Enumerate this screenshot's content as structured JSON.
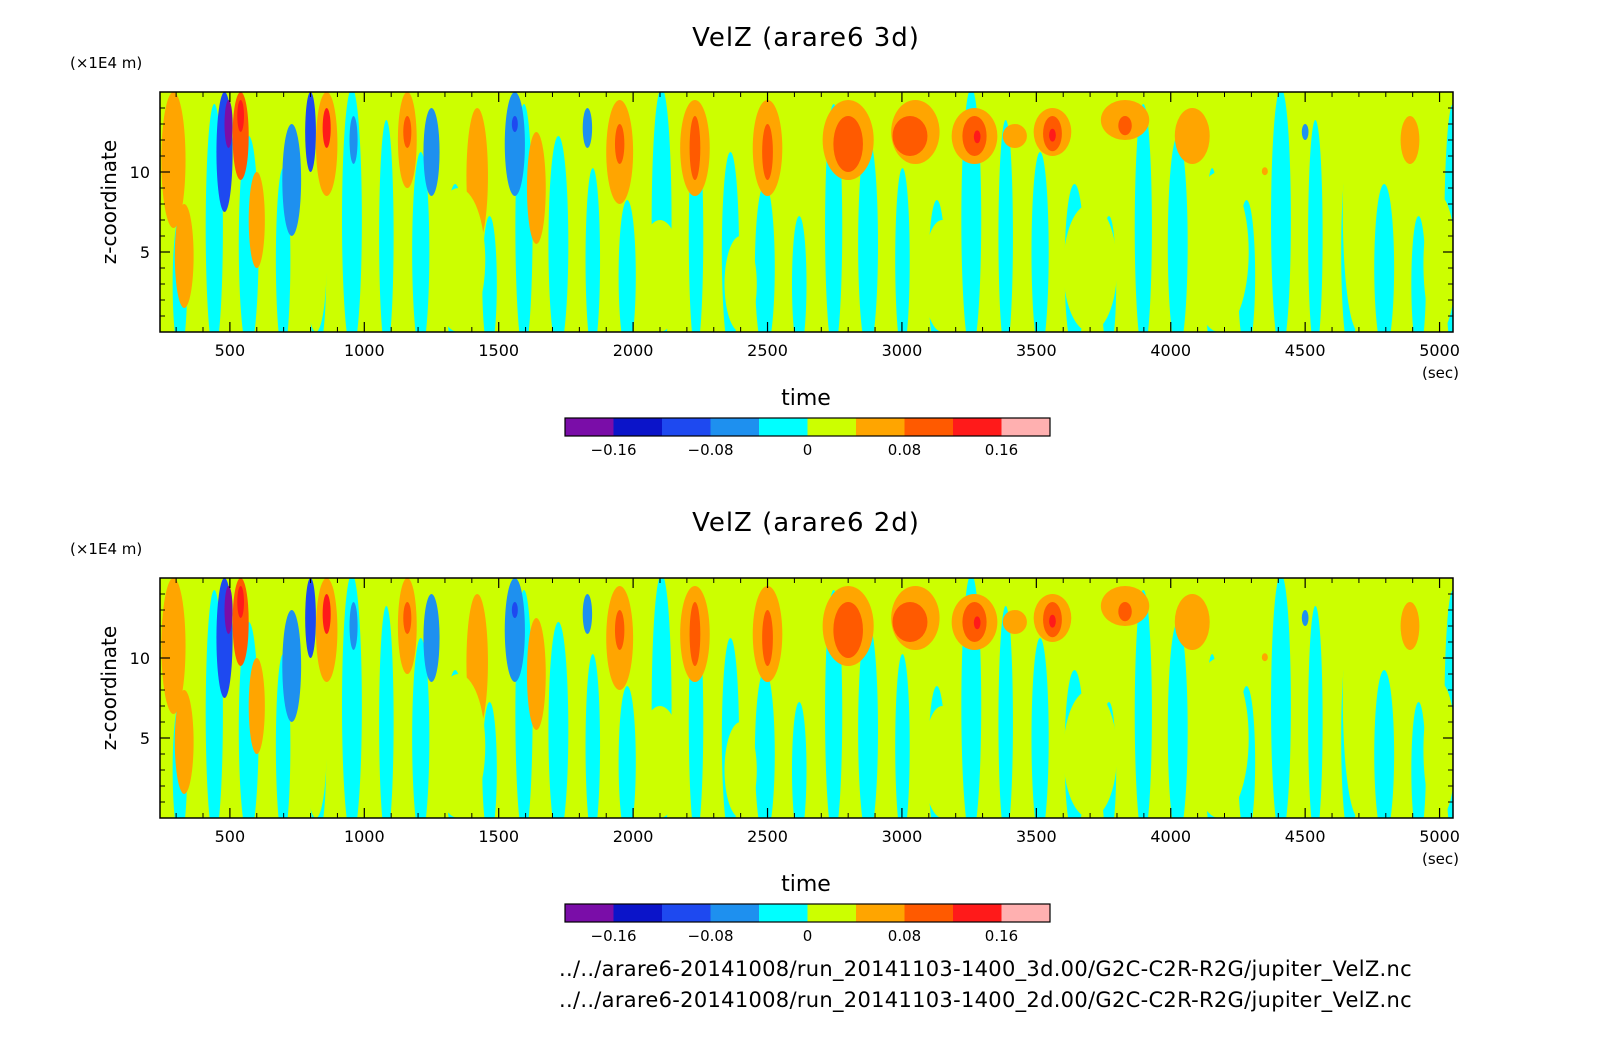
{
  "colorbar": {
    "colors": [
      "#7a0da8",
      "#0b14c9",
      "#1e49f0",
      "#1e90ef",
      "#00ffff",
      "#ccff00",
      "#ffa500",
      "#ff5a00",
      "#ff1a1a",
      "#ffb0b0"
    ],
    "tick_values": [
      -0.16,
      -0.08,
      0,
      0.08,
      0.16
    ],
    "tick_labels": [
      "−0.16",
      "−0.08",
      "0",
      "0.08",
      "0.16"
    ]
  },
  "chart_data": [
    {
      "type": "heatmap",
      "title": "VelZ (arare6 3d)",
      "xlabel": "time",
      "x_unit": "(sec)",
      "ylabel": "z-coordinate",
      "y_unit": "(×1E4 m)",
      "xlim": [
        240,
        5050
      ],
      "ylim": [
        0,
        15
      ],
      "x_ticks": [
        500,
        1000,
        1500,
        2000,
        2500,
        3000,
        3500,
        4000,
        4500,
        5000
      ],
      "y_ticks": [
        5,
        10
      ],
      "value_levels": [
        -0.2,
        -0.16,
        -0.12,
        -0.08,
        -0.04,
        0,
        0.04,
        0.08,
        0.12,
        0.16,
        0.2
      ],
      "features": [
        {
          "t": 290,
          "z_bottom": 6.5,
          "z_top": 15,
          "width": 90,
          "value": 0.06
        },
        {
          "t": 330,
          "z_bottom": 1.5,
          "z_top": 8,
          "width": 70,
          "value": 0.06
        },
        {
          "t": 480,
          "z_bottom": 7.5,
          "z_top": 15,
          "width": 60,
          "value": -0.1
        },
        {
          "t": 495,
          "z_bottom": 11.5,
          "z_top": 14.5,
          "width": 30,
          "value": -0.17
        },
        {
          "t": 540,
          "z_bottom": 9.5,
          "z_top": 15,
          "width": 60,
          "value": 0.09
        },
        {
          "t": 540,
          "z_bottom": 12.5,
          "z_top": 14.5,
          "width": 25,
          "value": 0.13
        },
        {
          "t": 600,
          "z_bottom": 4,
          "z_top": 10,
          "width": 60,
          "value": 0.06
        },
        {
          "t": 730,
          "z_bottom": 6,
          "z_top": 13,
          "width": 70,
          "value": -0.07
        },
        {
          "t": 800,
          "z_bottom": 10,
          "z_top": 15,
          "width": 40,
          "value": -0.09
        },
        {
          "t": 860,
          "z_bottom": 8.5,
          "z_top": 15,
          "width": 80,
          "value": 0.07
        },
        {
          "t": 860,
          "z_bottom": 11.5,
          "z_top": 14,
          "width": 30,
          "value": 0.12
        },
        {
          "t": 960,
          "z_bottom": 10.5,
          "z_top": 13.5,
          "width": 30,
          "value": -0.06
        },
        {
          "t": 1160,
          "z_bottom": 9,
          "z_top": 15,
          "width": 70,
          "value": 0.06
        },
        {
          "t": 1160,
          "z_bottom": 11.5,
          "z_top": 13.5,
          "width": 30,
          "value": 0.1
        },
        {
          "t": 1250,
          "z_bottom": 8.5,
          "z_top": 14,
          "width": 60,
          "value": -0.06
        },
        {
          "t": 1420,
          "z_bottom": 5.5,
          "z_top": 14,
          "width": 80,
          "value": 0.06
        },
        {
          "t": 1560,
          "z_bottom": 8.5,
          "z_top": 15,
          "width": 75,
          "value": -0.06
        },
        {
          "t": 1560,
          "z_bottom": 12.5,
          "z_top": 13.5,
          "width": 10,
          "value": -0.09
        },
        {
          "t": 1640,
          "z_bottom": 5.5,
          "z_top": 12.5,
          "width": 70,
          "value": 0.06
        },
        {
          "t": 1830,
          "z_bottom": 11.5,
          "z_top": 14,
          "width": 35,
          "value": -0.05
        },
        {
          "t": 1950,
          "z_bottom": 8,
          "z_top": 14.5,
          "width": 100,
          "value": 0.06
        },
        {
          "t": 1950,
          "z_bottom": 10.5,
          "z_top": 13,
          "width": 35,
          "value": 0.1
        },
        {
          "t": 2230,
          "z_bottom": 8.5,
          "z_top": 14.5,
          "width": 110,
          "value": 0.06
        },
        {
          "t": 2230,
          "z_bottom": 9.5,
          "z_top": 13.5,
          "width": 40,
          "value": 0.1
        },
        {
          "t": 2500,
          "z_bottom": 8.5,
          "z_top": 14.5,
          "width": 110,
          "value": 0.06
        },
        {
          "t": 2500,
          "z_bottom": 9.5,
          "z_top": 13,
          "width": 40,
          "value": 0.1
        },
        {
          "t": 2800,
          "z_bottom": 9.5,
          "z_top": 14.5,
          "width": 190,
          "value": 0.06
        },
        {
          "t": 2800,
          "z_bottom": 10,
          "z_top": 13.5,
          "width": 110,
          "value": 0.1
        },
        {
          "t": 3050,
          "z_bottom": 10.5,
          "z_top": 14.5,
          "width": 180,
          "value": 0.06
        },
        {
          "t": 3030,
          "z_bottom": 11,
          "z_top": 13.5,
          "width": 130,
          "value": 0.1
        },
        {
          "t": 3270,
          "z_bottom": 10.5,
          "z_top": 14,
          "width": 170,
          "value": 0.06
        },
        {
          "t": 3270,
          "z_bottom": 11,
          "z_top": 13.5,
          "width": 90,
          "value": 0.1
        },
        {
          "t": 3280,
          "z_bottom": 11.8,
          "z_top": 12.6,
          "width": 25,
          "value": 0.14
        },
        {
          "t": 3420,
          "z_bottom": 11.5,
          "z_top": 13,
          "width": 90,
          "value": 0.06
        },
        {
          "t": 3560,
          "z_bottom": 11,
          "z_top": 14,
          "width": 140,
          "value": 0.06
        },
        {
          "t": 3560,
          "z_bottom": 11.3,
          "z_top": 13.5,
          "width": 70,
          "value": 0.1
        },
        {
          "t": 3560,
          "z_bottom": 11.9,
          "z_top": 12.7,
          "width": 25,
          "value": 0.14
        },
        {
          "t": 3830,
          "z_bottom": 12,
          "z_top": 14.5,
          "width": 180,
          "value": 0.06
        },
        {
          "t": 3830,
          "z_bottom": 12.3,
          "z_top": 13.5,
          "width": 50,
          "value": 0.1
        },
        {
          "t": 4080,
          "z_bottom": 10.5,
          "z_top": 14,
          "width": 130,
          "value": 0.06
        },
        {
          "t": 4350,
          "z_bottom": 9.8,
          "z_top": 10.3,
          "width": 15,
          "value": 0.06
        },
        {
          "t": 4500,
          "z_bottom": 12,
          "z_top": 13,
          "width": 25,
          "value": -0.05
        },
        {
          "t": 4890,
          "z_bottom": 10.5,
          "z_top": 13.5,
          "width": 70,
          "value": 0.06
        },
        {
          "t": 820,
          "z_bottom": 0,
          "z_top": 9,
          "width": 80,
          "value": 0.01
        },
        {
          "t": 1350,
          "z_bottom": 0,
          "z_top": 9,
          "width": 200,
          "value": 0.01
        },
        {
          "t": 2100,
          "z_bottom": 0,
          "z_top": 7,
          "width": 160,
          "value": 0.01
        },
        {
          "t": 2400,
          "z_bottom": 0,
          "z_top": 6,
          "width": 120,
          "value": 0.01
        },
        {
          "t": 3150,
          "z_bottom": 0,
          "z_top": 7,
          "width": 140,
          "value": 0.01
        },
        {
          "t": 3700,
          "z_bottom": 0,
          "z_top": 8,
          "width": 200,
          "value": 0.01
        },
        {
          "t": 4180,
          "z_bottom": 0,
          "z_top": 10,
          "width": 220,
          "value": 0.01
        },
        {
          "t": 4700,
          "z_bottom": 0,
          "z_top": 15,
          "width": 120,
          "value": 0.01
        },
        {
          "t": 5000,
          "z_bottom": 0,
          "z_top": 8.5,
          "width": 120,
          "value": 0.01
        }
      ]
    },
    {
      "type": "heatmap",
      "title": "VelZ (arare6 2d)",
      "xlabel": "time",
      "x_unit": "(sec)",
      "ylabel": "z-coordinate",
      "y_unit": "(×1E4 m)",
      "xlim": [
        240,
        5050
      ],
      "ylim": [
        0,
        15
      ],
      "x_ticks": [
        500,
        1000,
        1500,
        2000,
        2500,
        3000,
        3500,
        4000,
        4500,
        5000
      ],
      "y_ticks": [
        5,
        10
      ],
      "value_levels": [
        -0.2,
        -0.16,
        -0.12,
        -0.08,
        -0.04,
        0,
        0.04,
        0.08,
        0.12,
        0.16,
        0.2
      ],
      "features": [
        {
          "t": 290,
          "z_bottom": 6.5,
          "z_top": 15,
          "width": 90,
          "value": 0.06
        },
        {
          "t": 330,
          "z_bottom": 1.5,
          "z_top": 8,
          "width": 70,
          "value": 0.06
        },
        {
          "t": 480,
          "z_bottom": 7.5,
          "z_top": 15,
          "width": 60,
          "value": -0.1
        },
        {
          "t": 495,
          "z_bottom": 11.5,
          "z_top": 14.5,
          "width": 30,
          "value": -0.17
        },
        {
          "t": 540,
          "z_bottom": 9.5,
          "z_top": 15,
          "width": 60,
          "value": 0.09
        },
        {
          "t": 540,
          "z_bottom": 12.5,
          "z_top": 14.5,
          "width": 25,
          "value": 0.13
        },
        {
          "t": 600,
          "z_bottom": 4,
          "z_top": 10,
          "width": 60,
          "value": 0.06
        },
        {
          "t": 730,
          "z_bottom": 6,
          "z_top": 13,
          "width": 70,
          "value": -0.07
        },
        {
          "t": 800,
          "z_bottom": 10,
          "z_top": 15,
          "width": 40,
          "value": -0.09
        },
        {
          "t": 860,
          "z_bottom": 8.5,
          "z_top": 15,
          "width": 80,
          "value": 0.07
        },
        {
          "t": 860,
          "z_bottom": 11.5,
          "z_top": 14,
          "width": 30,
          "value": 0.12
        },
        {
          "t": 960,
          "z_bottom": 10.5,
          "z_top": 13.5,
          "width": 30,
          "value": -0.06
        },
        {
          "t": 1160,
          "z_bottom": 9,
          "z_top": 15,
          "width": 70,
          "value": 0.06
        },
        {
          "t": 1160,
          "z_bottom": 11.5,
          "z_top": 13.5,
          "width": 30,
          "value": 0.1
        },
        {
          "t": 1250,
          "z_bottom": 8.5,
          "z_top": 14,
          "width": 60,
          "value": -0.06
        },
        {
          "t": 1420,
          "z_bottom": 5.5,
          "z_top": 14,
          "width": 80,
          "value": 0.06
        },
        {
          "t": 1560,
          "z_bottom": 8.5,
          "z_top": 15,
          "width": 75,
          "value": -0.06
        },
        {
          "t": 1560,
          "z_bottom": 12.5,
          "z_top": 13.5,
          "width": 10,
          "value": -0.09
        },
        {
          "t": 1640,
          "z_bottom": 5.5,
          "z_top": 12.5,
          "width": 70,
          "value": 0.06
        },
        {
          "t": 1830,
          "z_bottom": 11.5,
          "z_top": 14,
          "width": 35,
          "value": -0.05
        },
        {
          "t": 1950,
          "z_bottom": 8,
          "z_top": 14.5,
          "width": 100,
          "value": 0.06
        },
        {
          "t": 1950,
          "z_bottom": 10.5,
          "z_top": 13,
          "width": 35,
          "value": 0.1
        },
        {
          "t": 2230,
          "z_bottom": 8.5,
          "z_top": 14.5,
          "width": 110,
          "value": 0.06
        },
        {
          "t": 2230,
          "z_bottom": 9.5,
          "z_top": 13.5,
          "width": 40,
          "value": 0.1
        },
        {
          "t": 2500,
          "z_bottom": 8.5,
          "z_top": 14.5,
          "width": 110,
          "value": 0.06
        },
        {
          "t": 2500,
          "z_bottom": 9.5,
          "z_top": 13,
          "width": 40,
          "value": 0.1
        },
        {
          "t": 2800,
          "z_bottom": 9.5,
          "z_top": 14.5,
          "width": 190,
          "value": 0.06
        },
        {
          "t": 2800,
          "z_bottom": 10,
          "z_top": 13.5,
          "width": 110,
          "value": 0.1
        },
        {
          "t": 3050,
          "z_bottom": 10.5,
          "z_top": 14.5,
          "width": 180,
          "value": 0.06
        },
        {
          "t": 3030,
          "z_bottom": 11,
          "z_top": 13.5,
          "width": 130,
          "value": 0.1
        },
        {
          "t": 3270,
          "z_bottom": 10.5,
          "z_top": 14,
          "width": 170,
          "value": 0.06
        },
        {
          "t": 3270,
          "z_bottom": 11,
          "z_top": 13.5,
          "width": 90,
          "value": 0.1
        },
        {
          "t": 3280,
          "z_bottom": 11.8,
          "z_top": 12.6,
          "width": 25,
          "value": 0.14
        },
        {
          "t": 3420,
          "z_bottom": 11.5,
          "z_top": 13,
          "width": 90,
          "value": 0.06
        },
        {
          "t": 3560,
          "z_bottom": 11,
          "z_top": 14,
          "width": 140,
          "value": 0.06
        },
        {
          "t": 3560,
          "z_bottom": 11.3,
          "z_top": 13.5,
          "width": 70,
          "value": 0.1
        },
        {
          "t": 3560,
          "z_bottom": 11.9,
          "z_top": 12.7,
          "width": 25,
          "value": 0.14
        },
        {
          "t": 3830,
          "z_bottom": 12,
          "z_top": 14.5,
          "width": 180,
          "value": 0.06
        },
        {
          "t": 3830,
          "z_bottom": 12.3,
          "z_top": 13.5,
          "width": 50,
          "value": 0.1
        },
        {
          "t": 4080,
          "z_bottom": 10.5,
          "z_top": 14,
          "width": 130,
          "value": 0.06
        },
        {
          "t": 4350,
          "z_bottom": 9.8,
          "z_top": 10.3,
          "width": 15,
          "value": 0.06
        },
        {
          "t": 4500,
          "z_bottom": 12,
          "z_top": 13,
          "width": 25,
          "value": -0.05
        },
        {
          "t": 4890,
          "z_bottom": 10.5,
          "z_top": 13.5,
          "width": 70,
          "value": 0.06
        },
        {
          "t": 820,
          "z_bottom": 0,
          "z_top": 9,
          "width": 80,
          "value": 0.01
        },
        {
          "t": 1350,
          "z_bottom": 0,
          "z_top": 9,
          "width": 200,
          "value": 0.01
        },
        {
          "t": 2100,
          "z_bottom": 0,
          "z_top": 7,
          "width": 160,
          "value": 0.01
        },
        {
          "t": 2400,
          "z_bottom": 0,
          "z_top": 6,
          "width": 120,
          "value": 0.01
        },
        {
          "t": 3150,
          "z_bottom": 0,
          "z_top": 7,
          "width": 140,
          "value": 0.01
        },
        {
          "t": 3700,
          "z_bottom": 0,
          "z_top": 8,
          "width": 200,
          "value": 0.01
        },
        {
          "t": 4180,
          "z_bottom": 0,
          "z_top": 10,
          "width": 220,
          "value": 0.01
        },
        {
          "t": 4700,
          "z_bottom": 0,
          "z_top": 15,
          "width": 120,
          "value": 0.01
        },
        {
          "t": 5000,
          "z_bottom": 0,
          "z_top": 8.5,
          "width": 120,
          "value": 0.01
        }
      ]
    }
  ],
  "file_paths": [
    "../../arare6-20141008/run_20141103-1400_3d.00/G2C-C2R-R2G/jupiter_VelZ.nc",
    "../../arare6-20141008/run_20141103-1400_2d.00/G2C-C2R-R2G/jupiter_VelZ.nc"
  ]
}
